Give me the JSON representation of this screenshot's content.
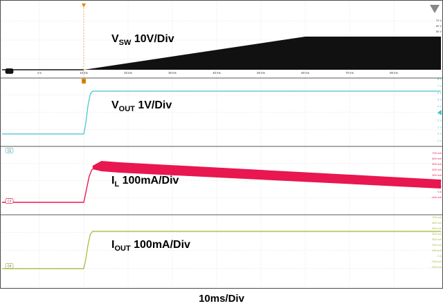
{
  "chart_data": {
    "type": "line",
    "timebase_label": "10ms/Div",
    "x_tick_labels": [
      "-20 ms",
      "0 s",
      "10 ms",
      "20 ms",
      "30 ms",
      "40 ms",
      "50 ms",
      "60 ms",
      "70 ms",
      "80 ms"
    ],
    "trigger_marker": "T",
    "colors": {
      "ch1": "#111111",
      "ch2": "#41c4c8",
      "ch3": "#e8174f",
      "ch4": "#9db834",
      "grid": "#c8c8c8",
      "divider": "#555555"
    },
    "channels": [
      {
        "badge": "C1",
        "label_main": "V",
        "label_sub": "SW",
        "label_rest": " 10V/Div",
        "scale_labels": [
          "70 V",
          "60 V",
          "50 V"
        ],
        "waveform": "envelope from 0 at t=0 s rising to about 55 V at t=50 ms, flat after"
      },
      {
        "badge": "C2",
        "label_main": "V",
        "label_sub": "OUT",
        "label_rest": " 1V/Div",
        "scale_labels": [
          "8 V",
          "7 V",
          "6 V",
          "5 V",
          "4 V",
          "3 V",
          "2 V",
          "1 V",
          "0 V",
          "-1 V"
        ],
        "waveform": "0 V before t=0 s, rises to about 5 V within ~2 ms"
      },
      {
        "badge": "C3",
        "label_main": "I",
        "label_sub": "L",
        "label_rest": " 100mA/Div",
        "scale_labels": [
          "700 mA",
          "600 mA",
          "500 mA",
          "400 mA",
          "300 mA",
          "200 mA",
          "100 mA",
          "0 A",
          "-100 mA"
        ],
        "waveform": "0 A before t=0 s, rises to about 500 mA with switching ripple band about 470-560 mA"
      },
      {
        "badge": "C4",
        "label_main": "I",
        "label_sub": "OUT",
        "label_rest": " 100mA/Div",
        "scale_labels": [
          "700 mA",
          "600 mA",
          "500 mA",
          "400 mA",
          "300 mA",
          "200 mA",
          "100 mA",
          "0 A",
          "-100 mA",
          "-200 mA"
        ],
        "waveform": "0 A before t=0 s, rises to about 500 mA within ~2 ms"
      }
    ]
  }
}
